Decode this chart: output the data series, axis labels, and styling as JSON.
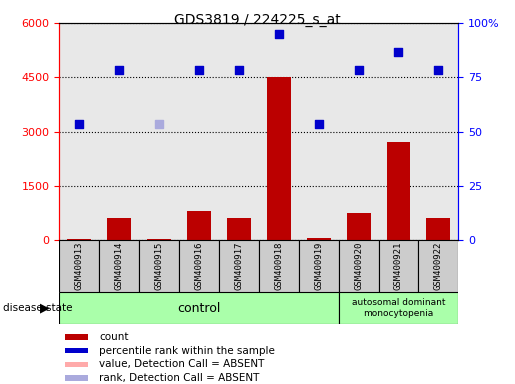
{
  "title": "GDS3819 / 224225_s_at",
  "samples": [
    "GSM400913",
    "GSM400914",
    "GSM400915",
    "GSM400916",
    "GSM400917",
    "GSM400918",
    "GSM400919",
    "GSM400920",
    "GSM400921",
    "GSM400922"
  ],
  "count_values": [
    30,
    600,
    30,
    800,
    600,
    4500,
    50,
    750,
    2700,
    600
  ],
  "rank_values": [
    3200,
    4700,
    3200,
    4700,
    4700,
    5700,
    3200,
    4700,
    5200,
    4700
  ],
  "absent_count_indices": [],
  "absent_rank_indices": [
    2
  ],
  "control_indices": [
    0,
    1,
    2,
    3,
    4,
    5,
    6
  ],
  "disease_indices": [
    7,
    8,
    9
  ],
  "disease_label": "autosomal dominant\nmonocytopenia",
  "control_label": "control",
  "ylim_left": [
    0,
    6000
  ],
  "ylim_right": [
    0,
    100
  ],
  "yticks_left": [
    0,
    1500,
    3000,
    4500,
    6000
  ],
  "yticks_right": [
    0,
    25,
    50,
    75,
    100
  ],
  "bar_color": "#bb0000",
  "dot_color": "#0000cc",
  "absent_bar_color": "#ffaaaa",
  "absent_dot_color": "#aaaadd",
  "bg_color": "#e8e8e8",
  "legend_items": [
    {
      "color": "#bb0000",
      "label": "count"
    },
    {
      "color": "#0000cc",
      "label": "percentile rank within the sample"
    },
    {
      "color": "#ffaaaa",
      "label": "value, Detection Call = ABSENT"
    },
    {
      "color": "#aaaadd",
      "label": "rank, Detection Call = ABSENT"
    }
  ]
}
